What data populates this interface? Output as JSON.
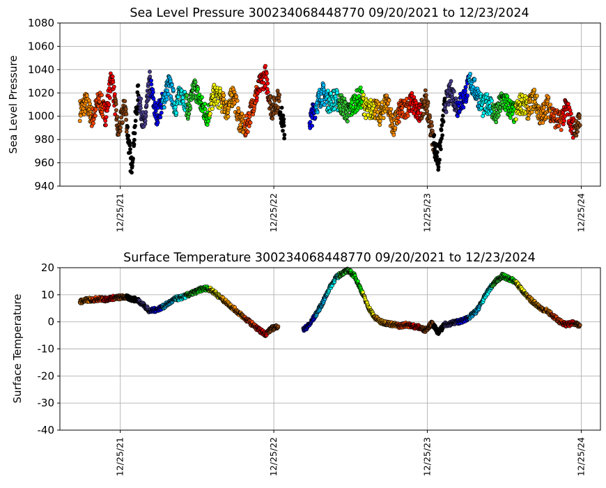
{
  "chart_data": [
    {
      "type": "scatter",
      "title": "Sea Level Pressure 300234068448770  09/20/2021 to 12/23/2024",
      "xlabel": "",
      "ylabel": "Sea Level Pressure",
      "x_range": [
        "2021-09-20",
        "2024-12-23"
      ],
      "ylim": [
        940,
        1080
      ],
      "yticks": [
        940,
        960,
        980,
        1000,
        1020,
        1040,
        1060,
        1080
      ],
      "xticks": [
        "12/25/21",
        "12/25/22",
        "12/25/23",
        "12/25/24"
      ],
      "grid": true,
      "color_note": "points colored in a cycling rainbow palette by time",
      "palette": [
        "#ff8c00",
        "#ff4500",
        "#ff0000",
        "#8b4513",
        "#000000",
        "#483d8b",
        "#0000ff",
        "#00bfff",
        "#00ffff",
        "#32cd32",
        "#00ff00",
        "#ffff00",
        "#ffa500"
      ],
      "series": [
        {
          "x": [
            "2021-09-20",
            "2021-10-05",
            "2021-10-20",
            "2021-11-05",
            "2021-11-20",
            "2021-12-05",
            "2021-12-20",
            "2022-01-05",
            "2022-01-20",
            "2022-02-05",
            "2022-02-20",
            "2022-03-05",
            "2022-03-20",
            "2022-04-05",
            "2022-04-20",
            "2022-05-05",
            "2022-05-20",
            "2022-06-05",
            "2022-06-20",
            "2022-07-05",
            "2022-07-20",
            "2022-08-05",
            "2022-08-20",
            "2022-09-05",
            "2022-09-20",
            "2022-10-05",
            "2022-10-20",
            "2022-11-05",
            "2022-11-20",
            "2022-12-05",
            "2022-12-20",
            "2023-01-05",
            "2023-01-20",
            "2023-02-05",
            "2023-02-20",
            "2023-03-05",
            "2023-03-20",
            "2023-04-05",
            "2023-04-20",
            "2023-05-05",
            "2023-05-20",
            "2023-06-05",
            "2023-06-20",
            "2023-07-05",
            "2023-07-20",
            "2023-08-05",
            "2023-08-20",
            "2023-09-05",
            "2023-09-20",
            "2023-10-05",
            "2023-10-20",
            "2023-11-05",
            "2023-11-20",
            "2023-12-05",
            "2023-12-20",
            "2024-01-05",
            "2024-01-20",
            "2024-02-05",
            "2024-02-20",
            "2024-03-05",
            "2024-03-20",
            "2024-04-05",
            "2024-04-20",
            "2024-05-05",
            "2024-05-20",
            "2024-06-05",
            "2024-06-20",
            "2024-07-05",
            "2024-07-20",
            "2024-08-05",
            "2024-08-20",
            "2024-09-05",
            "2024-09-20",
            "2024-10-05",
            "2024-10-20",
            "2024-11-05",
            "2024-11-20",
            "2024-12-05",
            "2024-12-23"
          ],
          "y": [
            1005,
            1012,
            998,
            1015,
            1000,
            1035,
            985,
            1010,
            955,
            1020,
            990,
            1030,
            1000,
            1012,
            1028,
            1008,
            1022,
            1005,
            1025,
            1010,
            1000,
            1018,
            1015,
            1005,
            1020,
            995,
            990,
            1010,
            1025,
            1035,
            1005,
            1015,
            985,
            null,
            null,
            null,
            995,
            1010,
            1020,
            1012,
            1015,
            1010,
            1002,
            1012,
            1016,
            1004,
            1008,
            1000,
            1015,
            990,
            1004,
            1008,
            1012,
            1000,
            1015,
            985,
            960,
            1010,
            1022,
            1008,
            1015,
            1030,
            1020,
            1008,
            1012,
            1000,
            1015,
            1008,
            1002,
            1012,
            1006,
            1016,
            998,
            1010,
            1000,
            995,
            1008,
            990,
            995
          ]
        }
      ]
    },
    {
      "type": "scatter",
      "title": "Surface Temperature 300234068448770  09/20/2021 to 12/23/2024",
      "xlabel": "",
      "ylabel": "Surface Temperature",
      "x_range": [
        "2021-09-20",
        "2024-12-23"
      ],
      "ylim": [
        -40,
        20
      ],
      "yticks": [
        -40,
        -30,
        -20,
        -10,
        0,
        10,
        20
      ],
      "xticks": [
        "12/25/21",
        "12/25/22",
        "12/25/23",
        "12/25/24"
      ],
      "grid": true,
      "color_note": "points colored in a cycling rainbow palette by time",
      "series": [
        {
          "x": [
            "2021-09-20",
            "2021-10-05",
            "2021-10-20",
            "2021-11-05",
            "2021-11-20",
            "2021-12-05",
            "2021-12-20",
            "2022-01-05",
            "2022-01-20",
            "2022-02-05",
            "2022-02-20",
            "2022-03-05",
            "2022-03-20",
            "2022-04-05",
            "2022-04-20",
            "2022-05-05",
            "2022-05-20",
            "2022-06-05",
            "2022-06-20",
            "2022-07-05",
            "2022-07-20",
            "2022-08-05",
            "2022-08-20",
            "2022-09-05",
            "2022-09-20",
            "2022-10-05",
            "2022-10-20",
            "2022-11-05",
            "2022-11-20",
            "2022-12-05",
            "2022-12-20",
            "2023-01-05",
            "2023-01-20",
            "2023-02-05",
            "2023-02-20",
            "2023-03-05",
            "2023-03-20",
            "2023-04-05",
            "2023-04-20",
            "2023-05-05",
            "2023-05-20",
            "2023-06-05",
            "2023-06-20",
            "2023-07-05",
            "2023-07-20",
            "2023-08-05",
            "2023-08-20",
            "2023-09-05",
            "2023-09-20",
            "2023-10-05",
            "2023-10-20",
            "2023-11-05",
            "2023-11-20",
            "2023-12-05",
            "2023-12-20",
            "2024-01-05",
            "2024-01-20",
            "2024-02-05",
            "2024-02-20",
            "2024-03-05",
            "2024-03-20",
            "2024-04-05",
            "2024-04-20",
            "2024-05-05",
            "2024-05-20",
            "2024-06-05",
            "2024-06-20",
            "2024-07-05",
            "2024-07-20",
            "2024-08-05",
            "2024-08-20",
            "2024-09-05",
            "2024-09-20",
            "2024-10-05",
            "2024-10-20",
            "2024-11-05",
            "2024-11-20",
            "2024-12-05",
            "2024-12-23"
          ],
          "y": [
            7.5,
            8,
            8.2,
            8.5,
            8.3,
            8.8,
            9,
            9.2,
            8.5,
            8,
            6,
            4,
            4.5,
            5.5,
            7,
            8.5,
            9,
            10,
            11,
            12,
            12.5,
            11,
            9,
            7,
            5,
            3,
            1,
            -1,
            -3,
            -4.5,
            -2.5,
            -1.5,
            null,
            null,
            null,
            -3,
            -1,
            3,
            7,
            12,
            16,
            18,
            19,
            17,
            12,
            6,
            2,
            0,
            -0.5,
            -1,
            -1.5,
            -1,
            -1.5,
            -2,
            -3,
            -0.5,
            -4,
            -1,
            -0.5,
            0,
            0.5,
            2,
            4,
            8,
            12,
            15,
            17,
            16,
            15,
            12,
            9,
            7,
            5,
            4,
            2,
            0,
            -1,
            -0.5,
            -1.5
          ]
        }
      ]
    }
  ]
}
